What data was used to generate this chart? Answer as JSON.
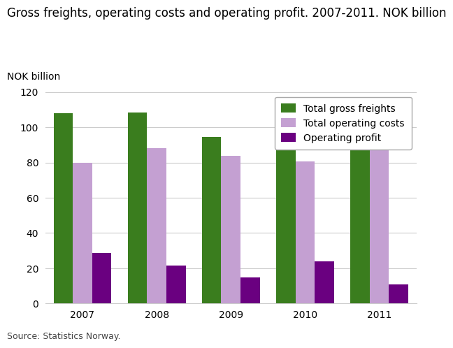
{
  "title": "Gross freights, operating costs and operating profit. 2007-2011. NOK billion",
  "ylabel": "NOK billion",
  "source": "Source: Statistics Norway.",
  "years": [
    "2007",
    "2008",
    "2009",
    "2010",
    "2011"
  ],
  "total_gross_freights": [
    108,
    108.5,
    94.5,
    99,
    103.5
  ],
  "total_operating_costs": [
    80,
    88,
    84,
    80.5,
    99
  ],
  "operating_profit": [
    28.5,
    21.5,
    15,
    24,
    11
  ],
  "colors": {
    "gross_freights": "#3a7d1e",
    "operating_costs": "#c4a0d2",
    "operating_profit": "#6a0080"
  },
  "legend_labels": [
    "Total gross freights",
    "Total operating costs",
    "Operating profit"
  ],
  "ylim": [
    0,
    120
  ],
  "yticks": [
    0,
    20,
    40,
    60,
    80,
    100,
    120
  ],
  "bar_width": 0.26,
  "background_color": "#ffffff",
  "title_fontsize": 12,
  "axis_label_fontsize": 10,
  "tick_fontsize": 10,
  "legend_fontsize": 10,
  "source_fontsize": 9
}
